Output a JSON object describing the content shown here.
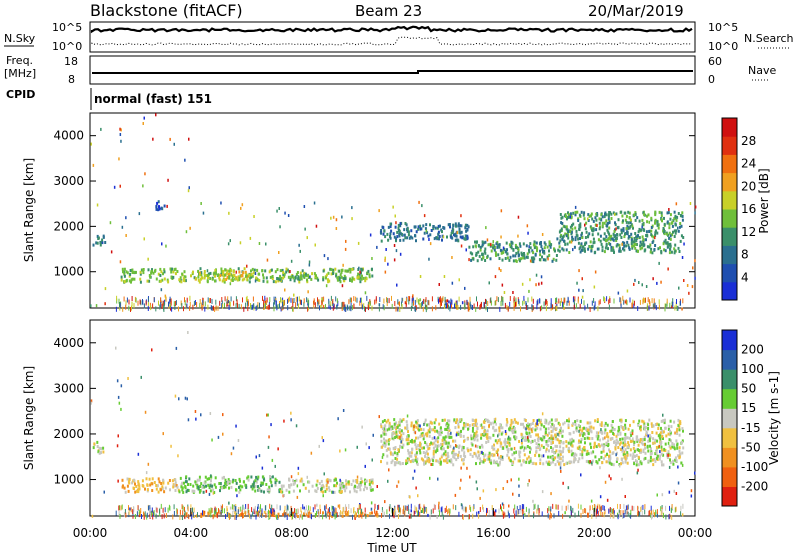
{
  "header": {
    "site": "Blackstone (fitACF)",
    "beam": "Beam 23",
    "date": "20/Mar/2019"
  },
  "summary_panels": {
    "nsky_label": "N.Sky",
    "nsearch_label": "N.Search",
    "count_ticks": [
      "10^5",
      "10^0"
    ],
    "freq_label_line1": "Freq.",
    "freq_label_line2": "[MHz]",
    "freq_ticks": [
      "18",
      "8"
    ],
    "nave_label": "Nave",
    "nave_ticks": [
      "60",
      "0"
    ],
    "cpid_label": "CPID",
    "cpid_value": "normal (fast) 151"
  },
  "colors": {
    "power": [
      "#1a2fd6",
      "#1f4fb0",
      "#2a6f8f",
      "#3a8f6a",
      "#6fbf3a",
      "#c8d028",
      "#f0a020",
      "#f07010",
      "#e03010",
      "#d01010"
    ],
    "velocity": [
      "#1a2fd6",
      "#2a5fa8",
      "#3a8f6a",
      "#66cc33",
      "#c8c8c0",
      "#f0c040",
      "#f09020",
      "#f06010",
      "#e02010"
    ]
  },
  "chart_data": [
    {
      "type": "heatmap",
      "name": "power",
      "ylabel": "Slant Range [km]",
      "yticks": [
        "1000",
        "2000",
        "3000",
        "4000"
      ],
      "ylim": [
        200,
        4500
      ],
      "xlim": [
        0,
        24
      ],
      "colorbar_label": "Power [dB]",
      "colorbar_ticks": [
        "4",
        "8",
        "12",
        "16",
        "20",
        "24",
        "28"
      ],
      "bands": [
        {
          "t0": 0.1,
          "t1": 0.6,
          "r0": 1600,
          "r1": 1850,
          "level": 2
        },
        {
          "t0": 1.2,
          "t1": 11.2,
          "r0": 800,
          "r1": 1100,
          "level": 4
        },
        {
          "t0": 4.0,
          "t1": 6.5,
          "r0": 850,
          "r1": 1050,
          "level": 5
        },
        {
          "t0": 11.5,
          "t1": 15.0,
          "r0": 1700,
          "r1": 2100,
          "level": 2
        },
        {
          "t0": 15.0,
          "t1": 18.5,
          "r0": 1250,
          "r1": 1700,
          "level": 3
        },
        {
          "t0": 18.5,
          "t1": 23.5,
          "r0": 1450,
          "r1": 2350,
          "level": 3
        },
        {
          "t0": 2.5,
          "t1": 3.0,
          "r0": 2400,
          "r1": 2600,
          "level": 1
        }
      ]
    },
    {
      "type": "heatmap",
      "name": "velocity",
      "ylabel": "Slant Range [km]",
      "yticks": [
        "1000",
        "2000",
        "3000",
        "4000"
      ],
      "ylim": [
        200,
        4500
      ],
      "xlim": [
        0,
        24
      ],
      "xlabel": "Time UT",
      "xticks": [
        "00:00",
        "04:00",
        "08:00",
        "12:00",
        "16:00",
        "20:00",
        "00:00"
      ],
      "colorbar_label": "Velocity [m s-1]",
      "colorbar_ticks": [
        "200",
        "100",
        "50",
        "15",
        "-15",
        "-50",
        "-100",
        "-200"
      ],
      "bands": [
        {
          "t0": 0.1,
          "t1": 0.6,
          "r0": 1600,
          "r1": 1850,
          "level": 4
        },
        {
          "t0": 1.2,
          "t1": 3.5,
          "r0": 750,
          "r1": 1050,
          "level": 5
        },
        {
          "t0": 3.5,
          "t1": 7.5,
          "r0": 750,
          "r1": 1100,
          "level": 3
        },
        {
          "t0": 7.5,
          "t1": 11.2,
          "r0": 750,
          "r1": 1050,
          "level": 4
        },
        {
          "t0": 11.5,
          "t1": 23.5,
          "r0": 1350,
          "r1": 2350,
          "level": 4
        },
        {
          "t0": 4.0,
          "t1": 11.5,
          "r0": 220,
          "r1": 320,
          "level": 6
        }
      ]
    }
  ]
}
